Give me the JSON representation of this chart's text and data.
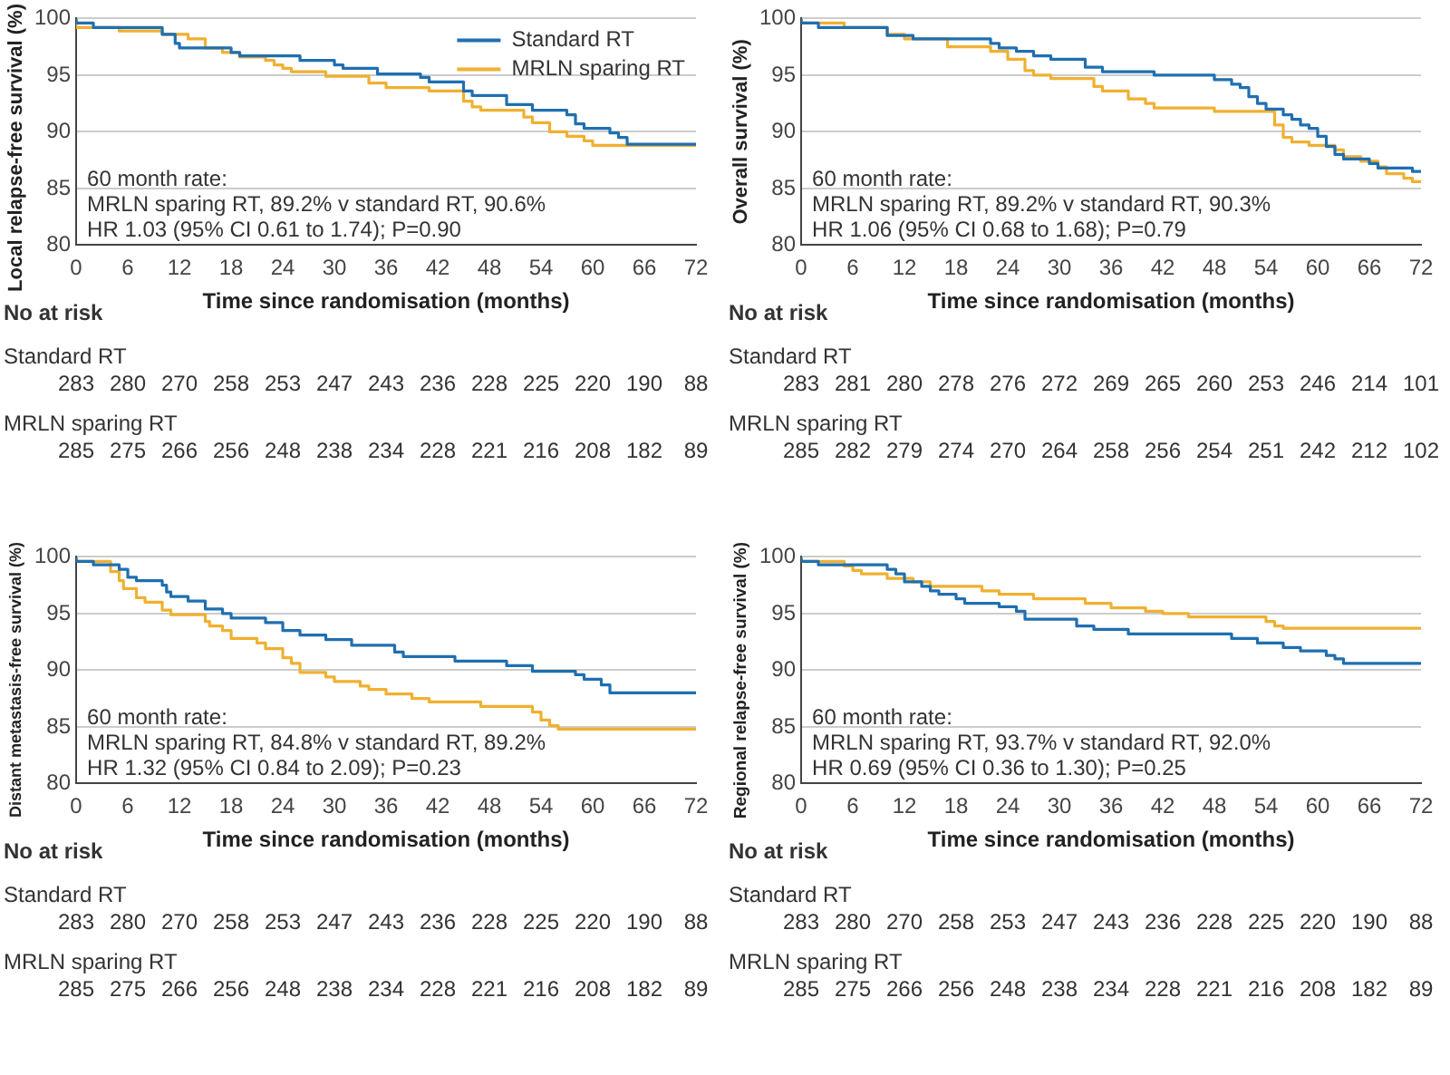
{
  "chart_data": [
    {
      "type": "step",
      "xlabel": "Time since randomisation (months)",
      "ylabel": "Local relapse-free survival (%)",
      "xlim": [
        0,
        72
      ],
      "xticks": [
        0,
        6,
        12,
        18,
        24,
        30,
        36,
        42,
        48,
        54,
        60,
        66,
        72
      ],
      "ylim": [
        80,
        100
      ],
      "yticks": [
        80,
        85,
        90,
        95,
        100
      ],
      "grid": "y",
      "legend": "top right",
      "series": [
        {
          "name": "Standard RT",
          "color": "#1f6fb0",
          "x": [
            0,
            2,
            10,
            11.5,
            12,
            18,
            19,
            26,
            30,
            31,
            35,
            40,
            41,
            45,
            46,
            50,
            53,
            57,
            58,
            59,
            62,
            63,
            64,
            65,
            72
          ],
          "values": [
            100,
            99.6,
            99.2,
            98.6,
            97.8,
            97.4,
            97.0,
            96.7,
            96.3,
            95.9,
            95.6,
            95.1,
            94.8,
            94.4,
            93.6,
            93.2,
            92.4,
            91.9,
            91.5,
            90.7,
            90.3,
            89.9,
            89.5,
            88.9,
            88.9
          ]
        },
        {
          "name": "MRLN sparing RT",
          "color": "#f0b030",
          "x": [
            0,
            5,
            10,
            13,
            15,
            17,
            19,
            22,
            23,
            24,
            25,
            29,
            34,
            36,
            41,
            45,
            46,
            47,
            52,
            53,
            55,
            57,
            59,
            60,
            61,
            72
          ],
          "values": [
            100,
            99.2,
            98.9,
            98.6,
            98.2,
            97.4,
            97.0,
            96.6,
            96.3,
            95.9,
            95.6,
            95.3,
            94.9,
            94.3,
            93.9,
            93.6,
            92.7,
            92.2,
            91.9,
            91.3,
            90.8,
            90.0,
            89.6,
            89.2,
            88.8,
            88.8
          ]
        }
      ],
      "annotations": [
        "60 month rate:",
        "MRLN sparing RT, 89.2% v standard RT, 90.6%",
        "HR 1.03 (95% CI 0.61 to 1.74); P=0.90",
        "No at risk",
        "Standard RT",
        "283 280 270 258 253 247 243 236 228 225 220 190 88",
        "MRLN sparing RT",
        "285 275 266 256 248 238 234 228 221 216 208 182 89"
      ]
    },
    {
      "type": "step",
      "xlabel": "Time since randomisation (months)",
      "ylabel": "Overall survival (%)",
      "xlim": [
        0,
        72
      ],
      "xticks": [
        0,
        6,
        12,
        18,
        24,
        30,
        36,
        42,
        48,
        54,
        60,
        66,
        72
      ],
      "ylim": [
        80,
        100
      ],
      "yticks": [
        80,
        85,
        90,
        95,
        100
      ],
      "grid": "y",
      "series": [
        {
          "color": "#1f6fb0",
          "x": [
            0,
            2,
            10,
            13,
            22,
            23,
            25,
            27,
            29,
            33,
            35,
            41,
            48,
            50,
            51,
            52,
            53,
            54,
            56,
            57,
            58,
            59,
            60,
            61,
            62,
            63,
            66,
            67,
            71,
            72
          ],
          "values": [
            100,
            99.6,
            99.2,
            98.5,
            98.2,
            97.8,
            97.4,
            97.1,
            96.7,
            96.4,
            95.7,
            95.3,
            95.0,
            94.6,
            94.2,
            93.9,
            93.1,
            92.5,
            92.0,
            91.5,
            91.1,
            90.6,
            90.3,
            89.6,
            88.7,
            88.0,
            87.6,
            87.2,
            86.8,
            86.5
          ]
        },
        {
          "color": "#f0b030",
          "x": [
            0,
            5,
            10,
            12,
            17,
            22,
            24,
            26,
            27,
            29,
            34,
            35,
            38,
            40,
            41,
            48,
            55,
            56,
            57,
            59,
            62,
            63,
            65,
            67,
            68,
            70,
            71,
            72
          ],
          "values": [
            100,
            99.6,
            99.2,
            98.6,
            98.2,
            97.5,
            97.1,
            96.4,
            95.4,
            95.0,
            94.7,
            94.0,
            93.6,
            92.9,
            92.5,
            92.1,
            91.8,
            90.6,
            89.5,
            89.1,
            88.8,
            88.4,
            87.8,
            87.4,
            86.9,
            86.3,
            85.9,
            85.6
          ]
        }
      ],
      "annotations": [
        "60 month rate:",
        "MRLN sparing RT, 89.2% v standard RT, 90.3%",
        "HR 1.06 (95% CI 0.68 to 1.68); P=0.79",
        "No at risk",
        "Standard RT",
        "283 281 280 278 276 272 269 265 260 253 246 214 101",
        "MRLN sparing RT",
        "285 282 279 274 270 264 258 256 254 251 242 212 102"
      ]
    },
    {
      "type": "step",
      "xlabel": "Time since randomisation (months)",
      "ylabel": "Distant metastasis-free survival (%)",
      "xlim": [
        0,
        72
      ],
      "xticks": [
        0,
        6,
        12,
        18,
        24,
        30,
        36,
        42,
        48,
        54,
        60,
        66,
        72
      ],
      "ylim": [
        80,
        100
      ],
      "yticks": [
        80,
        85,
        90,
        95,
        100
      ],
      "grid": "y",
      "series": [
        {
          "color": "#1f6fb0",
          "x": [
            0,
            2,
            5,
            6,
            7,
            10,
            10.5,
            11,
            13,
            15,
            17,
            18,
            22,
            24,
            26,
            29,
            32,
            37,
            38,
            44,
            50,
            53,
            58,
            59,
            61,
            62,
            63,
            72
          ],
          "values": [
            100,
            99.6,
            99.3,
            98.9,
            98.2,
            97.9,
            97.5,
            96.9,
            96.5,
            96.1,
            95.4,
            95.0,
            94.6,
            94.2,
            93.5,
            93.1,
            92.7,
            92.2,
            91.6,
            91.2,
            90.8,
            90.4,
            89.9,
            89.6,
            89.2,
            88.7,
            88.0,
            88.0
          ]
        },
        {
          "color": "#f0b030",
          "x": [
            0,
            4,
            5,
            5.5,
            7,
            8,
            10,
            11,
            15,
            15.5,
            17,
            18,
            21,
            22,
            24,
            25,
            26,
            29,
            30,
            33,
            34,
            36,
            39,
            41,
            47,
            53,
            54,
            55,
            56,
            57,
            72
          ],
          "values": [
            100,
            99.6,
            98.7,
            97.9,
            97.2,
            96.4,
            96.0,
            95.3,
            94.9,
            94.3,
            93.9,
            93.5,
            92.8,
            92.4,
            91.9,
            91.1,
            90.6,
            89.8,
            89.4,
            89.0,
            88.6,
            88.3,
            87.9,
            87.5,
            87.2,
            86.8,
            86.3,
            85.6,
            85.1,
            84.8,
            84.8
          ]
        }
      ],
      "annotations": [
        "60 month rate:",
        "MRLN sparing RT, 84.8% v standard RT, 89.2%",
        "HR 1.32 (95% CI 0.84 to 2.09); P=0.23",
        "No at risk",
        "Standard RT",
        "283 280 270 258 253 247 243 236 228 225 220 190 88",
        "MRLN sparing RT",
        "285 275 266 256 248 238 234 228 221 216 208 182 89"
      ]
    },
    {
      "type": "step",
      "xlabel": "Time since randomisation (months)",
      "ylabel": "Regional relapse-free survival (%)",
      "xlim": [
        0,
        72
      ],
      "xticks": [
        0,
        6,
        12,
        18,
        24,
        30,
        36,
        42,
        48,
        54,
        60,
        66,
        72
      ],
      "ylim": [
        80,
        100
      ],
      "yticks": [
        80,
        85,
        90,
        95,
        100
      ],
      "grid": "y",
      "series": [
        {
          "color": "#1f6fb0",
          "x": [
            0,
            2,
            10,
            11,
            12,
            14,
            15,
            16,
            18,
            19,
            23,
            25,
            26,
            32,
            34,
            38,
            50,
            53,
            56,
            58,
            61,
            62,
            63,
            64,
            72
          ],
          "values": [
            100,
            99.6,
            99.3,
            98.9,
            98.5,
            97.8,
            97.4,
            97.0,
            96.7,
            96.3,
            95.9,
            95.6,
            95.2,
            94.5,
            93.9,
            93.6,
            93.2,
            92.8,
            92.4,
            92.0,
            91.7,
            91.3,
            91.0,
            90.6,
            90.6
          ]
        },
        {
          "color": "#f0b030",
          "x": [
            0,
            5,
            6,
            7,
            10,
            13,
            15,
            21,
            23,
            27,
            33,
            36,
            40,
            42,
            45,
            54,
            55,
            56,
            57,
            72
          ],
          "values": [
            100,
            99.6,
            99.2,
            98.8,
            98.5,
            98.1,
            97.8,
            97.4,
            97.0,
            96.7,
            96.3,
            95.9,
            95.5,
            95.2,
            95.0,
            94.7,
            94.3,
            93.9,
            93.7,
            93.7
          ]
        }
      ],
      "annotations": [
        "60 month rate:",
        "MRLN sparing RT, 93.7% v standard RT, 92.0%",
        "HR 0.69 (95% CI 0.36 to 1.30); P=0.25",
        "No at risk",
        "Standard RT",
        "283 280 270 258 253 247 243 236 228 225 220 190 88",
        "MRLN sparing RT",
        "285 275 266 256 248 238 234 228 221 216 208 182 89"
      ]
    }
  ]
}
